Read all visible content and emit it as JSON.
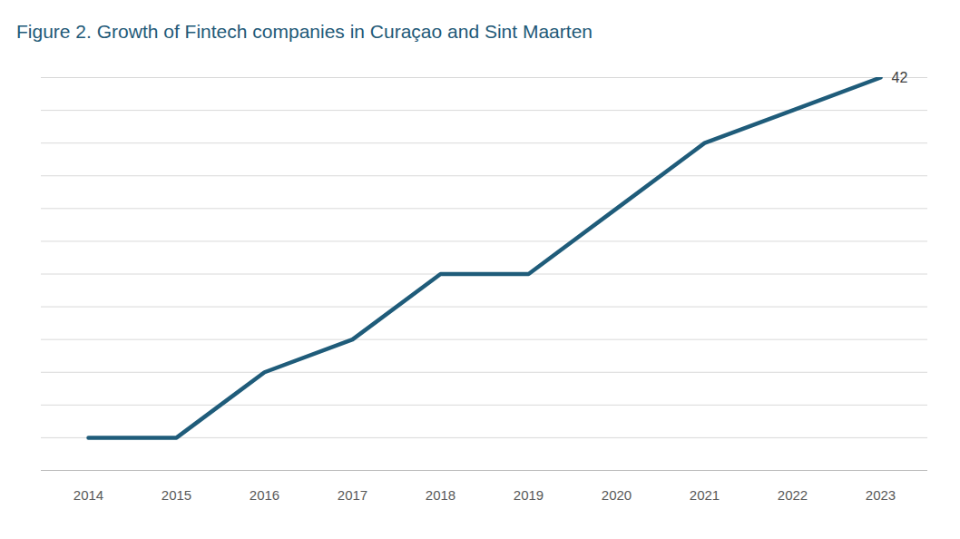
{
  "chart_data": {
    "type": "line",
    "title": "Figure 2. Growth of Fintech companies in Curaçao and Sint Maarten",
    "categories": [
      "2014",
      "2015",
      "2016",
      "2017",
      "2018",
      "2019",
      "2020",
      "2021",
      "2022",
      "2023"
    ],
    "values": [
      3.5,
      3.5,
      10.5,
      14,
      21,
      21,
      28,
      35,
      38.5,
      42
    ],
    "value_labels": [
      null,
      null,
      null,
      null,
      null,
      null,
      null,
      null,
      null,
      "42"
    ],
    "data_labels": true,
    "color": "#1f5c7a",
    "ylim": [
      0,
      42
    ],
    "yticks": [
      0,
      3.5,
      7,
      10.5,
      14,
      17.5,
      21,
      24.5,
      28,
      31.5,
      35,
      38.5,
      42
    ],
    "grid": true,
    "tick_labels": "x"
  }
}
